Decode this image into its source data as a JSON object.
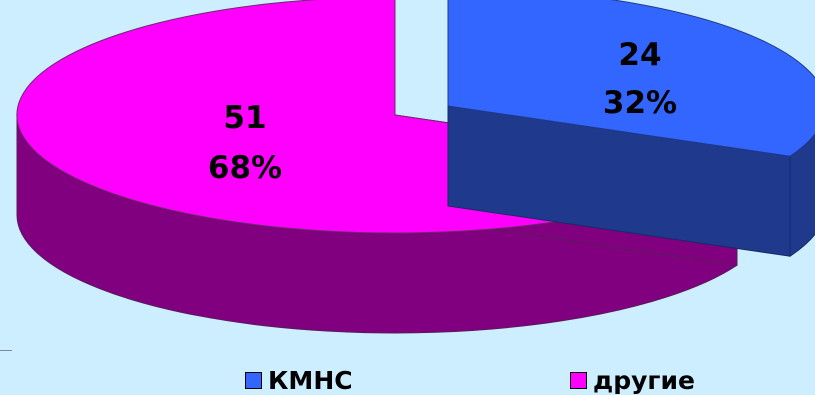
{
  "chart_data": {
    "type": "pie",
    "style": "3d-exploded",
    "slices": [
      {
        "name": "КМНС",
        "value": 24,
        "percent_label": "32%",
        "top_color": "#3366ff",
        "side_color": "#1f3a8c"
      },
      {
        "name": "другие",
        "value": 51,
        "percent_label": "68%",
        "top_color": "#ff00ff",
        "side_color": "#800080"
      }
    ],
    "legend_position": "bottom"
  },
  "legend": {
    "items": [
      {
        "label": "КМНС",
        "color": "#3366ff"
      },
      {
        "label": "другие",
        "color": "#ff00ff"
      }
    ]
  },
  "background_color": "#cceeff"
}
